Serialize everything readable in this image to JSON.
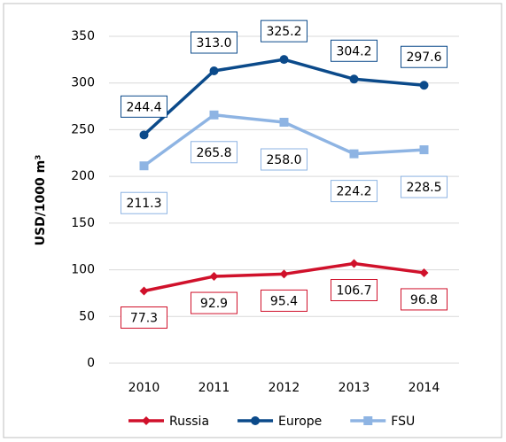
{
  "chart_data": {
    "type": "line",
    "y_label": "USD/1000 m³",
    "categories": [
      "2010",
      "2011",
      "2012",
      "2013",
      "2014"
    ],
    "series": [
      {
        "name": "Russia",
        "color": "#d0112b",
        "marker": "diamond",
        "values": [
          77.3,
          92.9,
          95.4,
          106.7,
          96.8
        ],
        "value_labels": [
          "77.3",
          "92.9",
          "95.4",
          "106.7",
          "96.8"
        ]
      },
      {
        "name": "Europe",
        "color": "#0b4a8a",
        "marker": "circle",
        "values": [
          244.4,
          313.0,
          325.2,
          304.2,
          297.6
        ],
        "value_labels": [
          "244.4",
          "313.0",
          "325.2",
          "304.2",
          "297.6"
        ]
      },
      {
        "name": "FSU",
        "color": "#8eb4e3",
        "marker": "square",
        "values": [
          211.3,
          265.8,
          258.0,
          224.2,
          228.5
        ],
        "value_labels": [
          "211.3",
          "265.8",
          "258.0",
          "224.2",
          "228.5"
        ]
      }
    ],
    "ylim": [
      0,
      350
    ],
    "yticks": [
      0,
      50,
      100,
      150,
      200,
      250,
      300,
      350
    ],
    "grid": true,
    "legend": "bottom"
  }
}
